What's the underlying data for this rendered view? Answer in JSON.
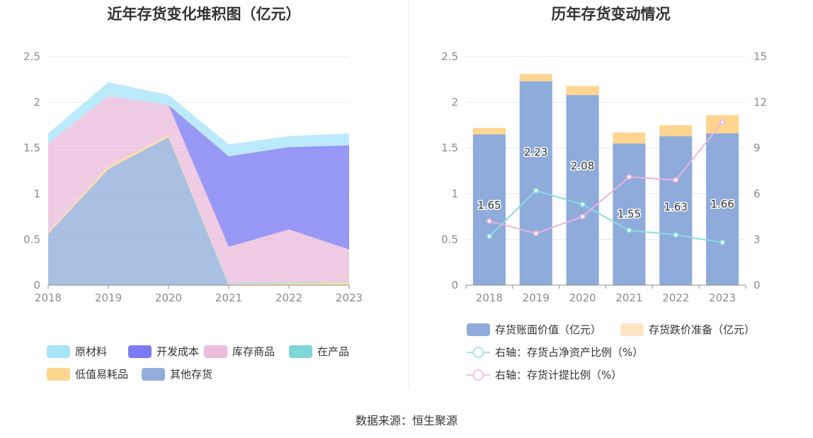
{
  "left_chart": {
    "title": "近年存货变化堆积图（亿元）",
    "legend": [
      {
        "name": "原材料",
        "color": "#a8e4fa"
      },
      {
        "name": "开发成本",
        "color": "#7b7bf3"
      },
      {
        "name": "库存商品",
        "color": "#ebbcdc"
      },
      {
        "name": "在产品",
        "color": "#7fd6d8"
      },
      {
        "name": "低值易耗品",
        "color": "#ffd68c"
      },
      {
        "name": "其他存货",
        "color": "#92aedb"
      }
    ]
  },
  "right_chart": {
    "title": "历年存货变动情况",
    "legend": [
      {
        "name": "存货账面价值（亿元）",
        "color": "#8eabdb",
        "shape": "rect"
      },
      {
        "name": "存货跌价准备（亿元）",
        "color": "#fde6c4",
        "shape": "rect"
      },
      {
        "name": "右轴：存货占净资产比例（%）",
        "color": "#a6e3e6",
        "shape": "line"
      },
      {
        "name": "右轴：存货计提比例（%）",
        "color": "#f1c2e6",
        "shape": "line"
      }
    ]
  },
  "chart_data": [
    {
      "type": "area",
      "stacked": true,
      "title": "近年存货变化堆积图（亿元）",
      "categories": [
        "2018",
        "2019",
        "2020",
        "2021",
        "2022",
        "2023"
      ],
      "ylim": [
        0,
        2.5
      ],
      "yticks": [
        "0",
        "0.5",
        "1",
        "1.5",
        "2",
        "2.5"
      ],
      "grid": true,
      "legend_position": "bottom",
      "series": [
        {
          "name": "其他存货",
          "color": "#92aedb",
          "values": [
            0.56,
            1.27,
            1.62,
            0,
            0,
            0
          ]
        },
        {
          "name": "低值易耗品",
          "color": "#ffd68c",
          "values": [
            0.02,
            0.03,
            0.02,
            0.01,
            0.02,
            0.03
          ]
        },
        {
          "name": "在产品",
          "color": "#7fd6d8",
          "values": [
            0,
            0,
            0,
            0.01,
            0.01,
            0.01
          ]
        },
        {
          "name": "库存商品",
          "color": "#ebbcdc",
          "values": [
            0.97,
            0.77,
            0.33,
            0.4,
            0.58,
            0.35
          ]
        },
        {
          "name": "开发成本",
          "color": "#7b7bf3",
          "values": [
            0,
            0,
            0,
            0.99,
            0.9,
            1.14
          ]
        },
        {
          "name": "原材料",
          "color": "#a8e4fa",
          "values": [
            0.11,
            0.15,
            0.11,
            0.13,
            0.12,
            0.13
          ]
        }
      ]
    },
    {
      "type": "bar",
      "stacked": true,
      "title": "历年存货变动情况",
      "categories": [
        "2018",
        "2019",
        "2020",
        "2021",
        "2022",
        "2023"
      ],
      "ylim": [
        0,
        2.5
      ],
      "yticks": [
        "0",
        "0.5",
        "1",
        "1.5",
        "2",
        "2.5"
      ],
      "y2lim": [
        0,
        15
      ],
      "y2ticks": [
        "0",
        "3",
        "6",
        "9",
        "12",
        "15"
      ],
      "grid": true,
      "legend_position": "bottom",
      "series": [
        {
          "name": "存货账面价值（亿元）",
          "color": "#8eabdb",
          "type": "bar",
          "values": [
            1.65,
            2.23,
            2.08,
            1.55,
            1.63,
            1.66
          ],
          "labels": [
            "1.65",
            "2.23",
            "2.08",
            "1.55",
            "1.63",
            "1.66"
          ]
        },
        {
          "name": "存货跌价准备（亿元）",
          "color": "#fed690",
          "type": "bar",
          "values": [
            0.07,
            0.08,
            0.1,
            0.12,
            0.12,
            0.2
          ]
        },
        {
          "name": "右轴：存货占净资产比例（%）",
          "color": "#88dde0",
          "type": "line",
          "axis": "right",
          "values": [
            3.2,
            6.2,
            5.3,
            3.6,
            3.3,
            2.8
          ]
        },
        {
          "name": "右轴：存货计提比例（%）",
          "color": "#ebb3e0",
          "type": "line",
          "axis": "right",
          "values": [
            4.2,
            3.4,
            4.5,
            7.1,
            6.9,
            10.7
          ]
        }
      ]
    }
  ],
  "footer": {
    "source": "数据来源：恒生聚源"
  }
}
